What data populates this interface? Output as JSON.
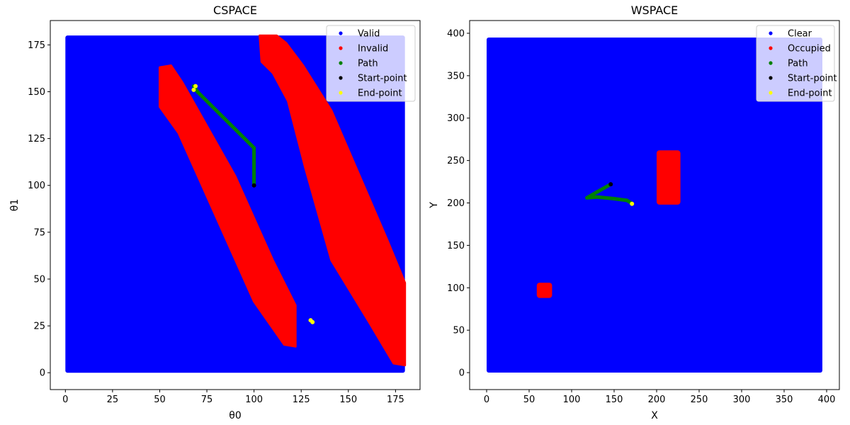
{
  "chart_data": [
    {
      "type": "scatter",
      "title": "CSPACE",
      "xlabel": "θ0",
      "ylabel": "θ1",
      "xlim": [
        -8,
        188
      ],
      "ylim": [
        -9,
        188
      ],
      "xticks": [
        0,
        25,
        50,
        75,
        100,
        125,
        150,
        175
      ],
      "yticks": [
        0,
        25,
        50,
        75,
        100,
        125,
        150,
        175
      ],
      "grid": false,
      "legend_position": "top-right",
      "region": {
        "x": [
          0,
          180
        ],
        "y": [
          0,
          180
        ]
      },
      "series": [
        {
          "name": "Valid",
          "color": "#0000ff",
          "description": "all sampled configurations outside obstacles"
        },
        {
          "name": "Invalid",
          "color": "#ff0000",
          "bands": [
            {
              "polygon": [
                [
                  50,
                  142
                ],
                [
                  50,
                  163
                ],
                [
                  56,
                  164
                ],
                [
                  62,
                  155
                ],
                [
                  90,
                  105
                ],
                [
                  110,
                  60
                ],
                [
                  122,
                  36
                ],
                [
                  122,
                  14
                ],
                [
                  116,
                  15
                ],
                [
                  100,
                  38
                ],
                [
                  60,
                  128
                ]
              ]
            },
            {
              "polygon": [
                [
                  103,
                  180
                ],
                [
                  112,
                  180
                ],
                [
                  117,
                  176
                ],
                [
                  126,
                  164
                ],
                [
                  141,
                  140
                ],
                [
                  156,
                  105
                ],
                [
                  171,
                  70
                ],
                [
                  180,
                  48
                ],
                [
                  180,
                  4
                ],
                [
                  174,
                  5
                ],
                [
                  161,
                  27
                ],
                [
                  141,
                  60
                ],
                [
                  127,
                  110
                ],
                [
                  118,
                  145
                ],
                [
                  110,
                  160
                ],
                [
                  104,
                  166
                ]
              ]
            }
          ]
        },
        {
          "name": "Path",
          "color": "#008000",
          "points": [
            [
              100,
              100
            ],
            [
              100,
              120
            ],
            [
              70,
              150
            ],
            [
              68,
              153
            ]
          ]
        },
        {
          "name": "Start-point",
          "color": "#000000",
          "points": [
            [
              100,
              100
            ]
          ]
        },
        {
          "name": "End-point",
          "color": "#ffff00",
          "points": [
            [
              68,
              151
            ],
            [
              69,
              153
            ],
            [
              130,
              28
            ],
            [
              131,
              27
            ]
          ]
        }
      ]
    },
    {
      "type": "scatter",
      "title": "WSPACE",
      "xlabel": "X",
      "ylabel": "Y",
      "xlim": [
        -20,
        415
      ],
      "ylim": [
        -20,
        415
      ],
      "xticks": [
        0,
        50,
        100,
        150,
        200,
        250,
        300,
        350,
        400
      ],
      "yticks": [
        0,
        50,
        100,
        150,
        200,
        250,
        300,
        350,
        400
      ],
      "grid": false,
      "legend_position": "top-right",
      "region": {
        "x": [
          0,
          395
        ],
        "y": [
          0,
          395
        ]
      },
      "series": [
        {
          "name": "Clear",
          "color": "#0000ff",
          "description": "free workspace cells"
        },
        {
          "name": "Occupied",
          "color": "#ff0000",
          "rects": [
            {
              "x0": 200,
              "x1": 228,
              "y0": 198,
              "y1": 262
            },
            {
              "x0": 59,
              "x1": 77,
              "y0": 88,
              "y1": 106
            }
          ]
        },
        {
          "name": "Path",
          "color": "#008000",
          "points": [
            [
              146,
              222
            ],
            [
              130,
              213
            ],
            [
              118,
              206
            ],
            [
              130,
              207
            ],
            [
              150,
              205
            ],
            [
              165,
              203
            ],
            [
              170,
              200
            ]
          ]
        },
        {
          "name": "Start-point",
          "color": "#000000",
          "points": [
            [
              146,
              222
            ]
          ]
        },
        {
          "name": "End-point",
          "color": "#ffff00",
          "points": [
            [
              171,
              199
            ]
          ]
        }
      ]
    }
  ]
}
